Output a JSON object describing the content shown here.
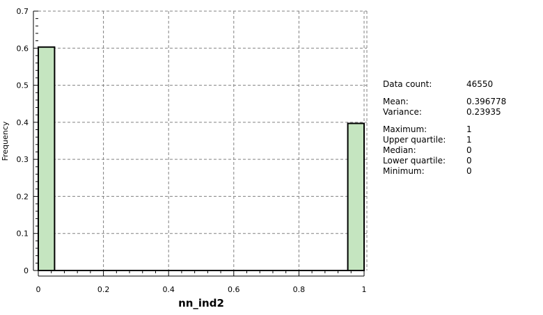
{
  "chart_data": {
    "type": "bar",
    "title": "",
    "xlabel": "nn_ind2",
    "ylabel": "Frequency",
    "xlim": [
      0,
      1
    ],
    "ylim": [
      0,
      0.7
    ],
    "grid": true,
    "x_ticks": [
      "0",
      "0.2",
      "0.4",
      "0.6",
      "0.8",
      "1"
    ],
    "y_ticks": [
      "0",
      "0.1",
      "0.2",
      "0.3",
      "0.4",
      "0.5",
      "0.6",
      "0.7"
    ],
    "bins": [
      {
        "from": 0,
        "to": 0.05,
        "value": 0.603
      },
      {
        "from": 0.95,
        "to": 1.0,
        "value": 0.397
      }
    ],
    "bar_color": "#c5e5c0",
    "bar_edge_color": "#000000"
  },
  "stats": {
    "data_count_label": "Data count:",
    "data_count": "46550",
    "mean_label": "Mean:",
    "mean": "0.396778",
    "variance_label": "Variance:",
    "variance": "0.23935",
    "maximum_label": "Maximum:",
    "maximum": "1",
    "upper_quartile_label": "Upper quartile:",
    "upper_quartile": "1",
    "median_label": "Median:",
    "median": "0",
    "lower_quartile_label": "Lower quartile:",
    "lower_quartile": "0",
    "minimum_label": "Minimum:",
    "minimum": "0"
  }
}
